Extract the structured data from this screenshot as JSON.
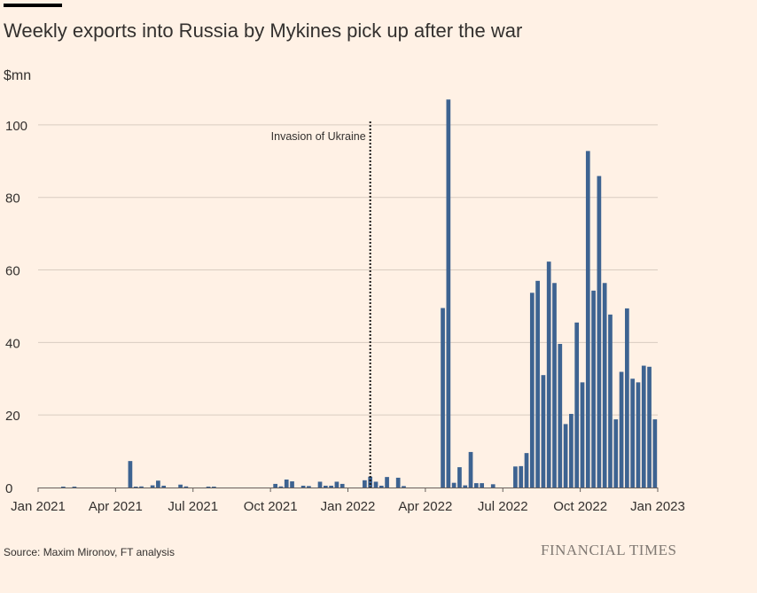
{
  "header": {
    "title": "Weekly exports into Russia by Mykines pick up after the war",
    "unit": "$mn"
  },
  "footer": {
    "source": "Source: Maxim Mironov, FT analysis",
    "brand": "FINANCIAL TIMES"
  },
  "colors": {
    "background": "#fff1e5",
    "bar": "#3d6391",
    "grid": "#d9ccc1",
    "text": "#33302e"
  },
  "chart_data": {
    "type": "bar",
    "title": "Weekly exports into Russia by Mykines pick up after the war",
    "ylabel": "$mn",
    "ylim": [
      0,
      110
    ],
    "yticks": [
      0,
      20,
      40,
      60,
      80,
      100
    ],
    "grid": true,
    "x_start": "Jan 2021",
    "x_end": "Jan 2023",
    "xtick_labels": [
      "Jan 2021",
      "Apr 2021",
      "Jul 2021",
      "Oct 2021",
      "Jan 2022",
      "Apr 2022",
      "Jul 2022",
      "Oct 2022",
      "Jan 2023"
    ],
    "annotation": {
      "label": "Invasion of Ukraine",
      "week_index": 59
    },
    "values": [
      0,
      0,
      0,
      0,
      0.1,
      0,
      0.1,
      0,
      0,
      0,
      0,
      0,
      0,
      0,
      0,
      0,
      7.3,
      0.2,
      0.3,
      0,
      0.6,
      1.9,
      0.5,
      0,
      0,
      0.8,
      0.3,
      0,
      0,
      0,
      0.1,
      0.1,
      0,
      0,
      0,
      0,
      0,
      0,
      0,
      0,
      0,
      0,
      1.0,
      0.3,
      2.2,
      1.7,
      0,
      0.5,
      0.4,
      0,
      1.6,
      0.5,
      0.5,
      1.6,
      1.0,
      0,
      0,
      0,
      2.0,
      3.0,
      1.6,
      0.5,
      2.9,
      0,
      2.7,
      0.4,
      0,
      0,
      0,
      0,
      0,
      0,
      49.5,
      107.0,
      1.3,
      5.6,
      0.6,
      9.8,
      1.2,
      1.2,
      0,
      0.9,
      0,
      0,
      0,
      5.8,
      5.9,
      9.5,
      53.7,
      57.0,
      31.0,
      62.3,
      56.4,
      39.6,
      17.5,
      20.3,
      45.5,
      29.0,
      92.8,
      54.3,
      85.9,
      56.4,
      47.7,
      18.8,
      31.9,
      49.4,
      30.0,
      29.0,
      33.6,
      33.3,
      18.8
    ]
  }
}
